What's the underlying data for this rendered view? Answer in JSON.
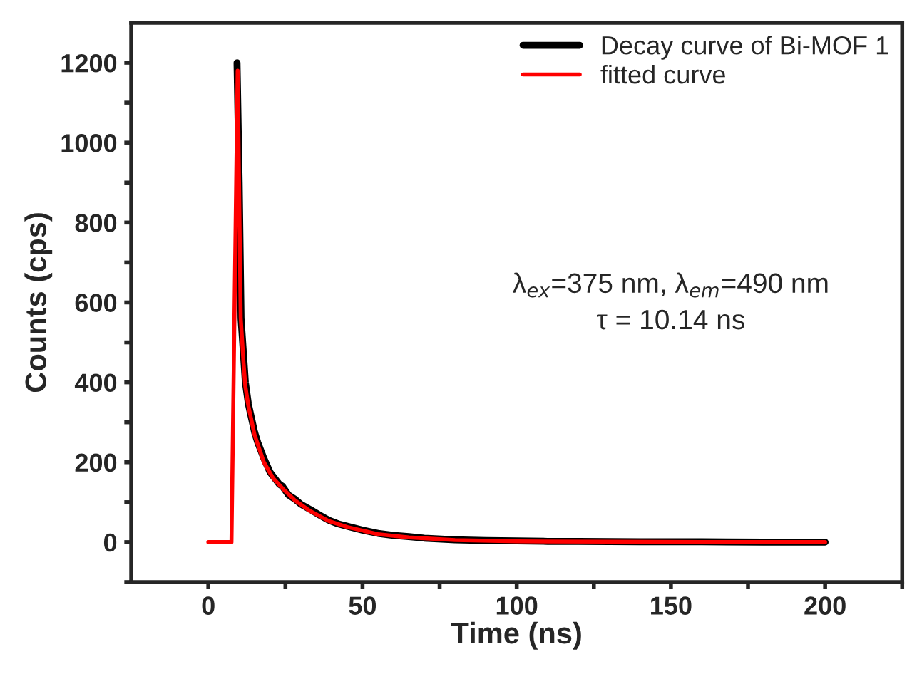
{
  "chart_data": {
    "type": "line",
    "xlabel": "Time (ns)",
    "ylabel": "Counts (cps)",
    "xlim": [
      -25,
      225
    ],
    "ylim": [
      -100,
      1300
    ],
    "xticks": [
      0,
      {
        "value": 25,
        "label": null
      },
      50,
      {
        "value": 75,
        "label": null
      },
      100,
      {
        "value": 125,
        "label": null
      },
      150,
      {
        "value": 175,
        "label": null
      },
      200,
      {
        "value": 225,
        "label": null
      }
    ],
    "yticks": [
      {
        "value": -100,
        "label": null
      },
      0,
      {
        "value": 100,
        "label": null
      },
      200,
      {
        "value": 300,
        "label": null
      },
      400,
      {
        "value": 500,
        "label": null
      },
      600,
      {
        "value": 700,
        "label": null
      },
      800,
      {
        "value": 900,
        "label": null
      },
      1000,
      {
        "value": 1100,
        "label": null
      },
      1200
    ],
    "series": [
      {
        "name": "Decay curve of Bi-MOF 1",
        "color": "#000000",
        "x": [
          9.3,
          10,
          10.6,
          11.4,
          12,
          13,
          15,
          16,
          18,
          20,
          21,
          23,
          24,
          26,
          28,
          30,
          33,
          36,
          39,
          42,
          45,
          50,
          55,
          60,
          65,
          70,
          80,
          90,
          100,
          110,
          120,
          140,
          160,
          180,
          200
        ],
        "values": [
          1200,
          900,
          560,
          470,
          400,
          345,
          275,
          250,
          210,
          175,
          165,
          145,
          140,
          118,
          108,
          95,
          82,
          68,
          55,
          46,
          40,
          30,
          22,
          17,
          14,
          10,
          6,
          4,
          3,
          2,
          2,
          1,
          1,
          0,
          0
        ]
      },
      {
        "name": "fitted curve",
        "color": "#ff0000",
        "x": [
          0,
          7.5,
          9.5,
          10.5,
          11.4,
          12,
          13,
          15,
          18,
          21,
          24,
          28,
          33,
          39,
          45,
          55,
          65,
          80,
          100,
          130,
          160,
          200
        ],
        "values": [
          0,
          0,
          1180,
          560,
          450,
          390,
          340,
          268,
          200,
          160,
          135,
          105,
          78,
          53,
          38,
          20,
          12,
          5,
          2,
          1,
          0,
          0
        ]
      }
    ],
    "legend": "top right",
    "grid": false,
    "annotations": [
      "λ$_{ex}$=375 nm, λ$_{em}$=490 nm",
      "τ = 10.14 ns"
    ]
  }
}
